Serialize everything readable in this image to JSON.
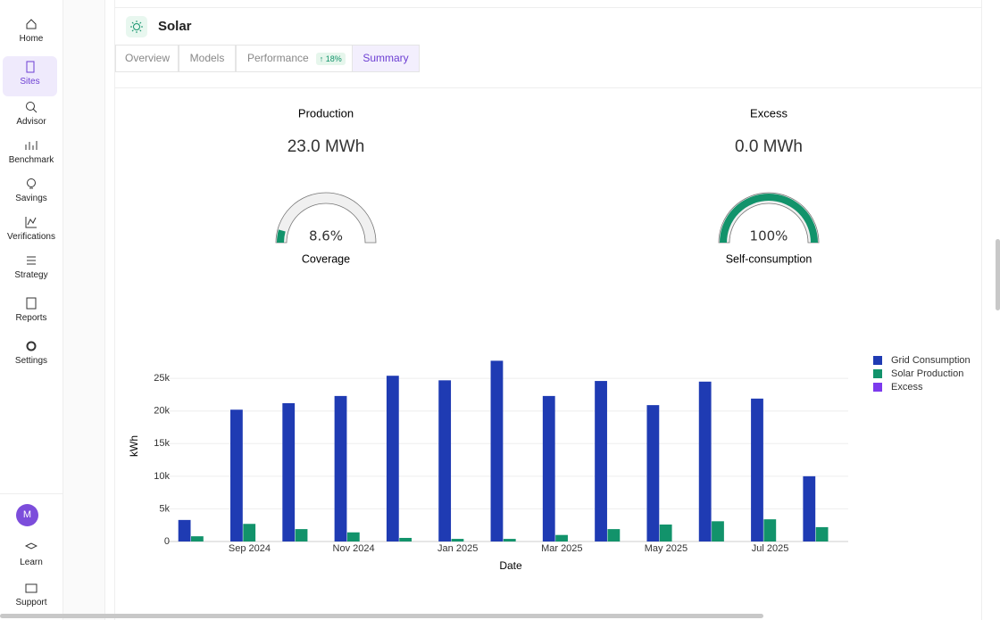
{
  "sidebar": {
    "items": [
      "Home",
      "Sites",
      "Advisor",
      "Benchmark",
      "Savings",
      "Verifications",
      "Strategy",
      "Reports",
      "Settings"
    ],
    "avatar": "M",
    "footer": [
      "Learn",
      "Support"
    ]
  },
  "header": {
    "title": "Solar"
  },
  "tabs": [
    "Overview",
    "Models",
    "Performance",
    "Summary"
  ],
  "badge": "18%",
  "gauges": [
    {
      "title": "Production",
      "total": "23.0 MWh",
      "value": 8.6,
      "value_label": "8.6%",
      "range": [
        0,
        100
      ],
      "caption": "Coverage"
    },
    {
      "title": "Excess",
      "total": "0.0 MWh",
      "value": 100,
      "value_label": "100%",
      "range": [
        0,
        100
      ],
      "caption": "Self-consumption"
    }
  ],
  "chart_data": {
    "type": "bar",
    "x_label": "Date",
    "y_label": "kWh",
    "categories": [
      null,
      "Sep 2024",
      null,
      "Nov 2024",
      null,
      "Jan 2025",
      null,
      "Mar 2025",
      null,
      "May 2025",
      null,
      "Jul 2025",
      null
    ],
    "series": [
      {
        "name": "Grid Consumption",
        "color": "#1f3bb3",
        "values": [
          3300,
          20200,
          21200,
          22300,
          25400,
          24700,
          27700,
          22300,
          24600,
          20900,
          24500,
          21900,
          10000
        ]
      },
      {
        "name": "Solar Production",
        "color": "#12936b",
        "values": [
          800,
          2700,
          1900,
          1400,
          550,
          400,
          400,
          1000,
          1900,
          2600,
          3100,
          3400,
          2200
        ]
      },
      {
        "name": "Excess",
        "color": "#7c3aed",
        "values": [
          0,
          0,
          0,
          0,
          0,
          0,
          0,
          0,
          0,
          0,
          0,
          0,
          0
        ]
      }
    ],
    "ylim": [
      0,
      28300
    ],
    "yticks": [
      0,
      {
        "value": 5000,
        "label": "5k"
      },
      {
        "value": 10000,
        "label": "10k"
      },
      {
        "value": 15000,
        "label": "15k"
      },
      {
        "value": 20000,
        "label": "20k"
      },
      {
        "value": 25000,
        "label": "25k"
      }
    ],
    "grid": true,
    "legend": "top-right"
  }
}
